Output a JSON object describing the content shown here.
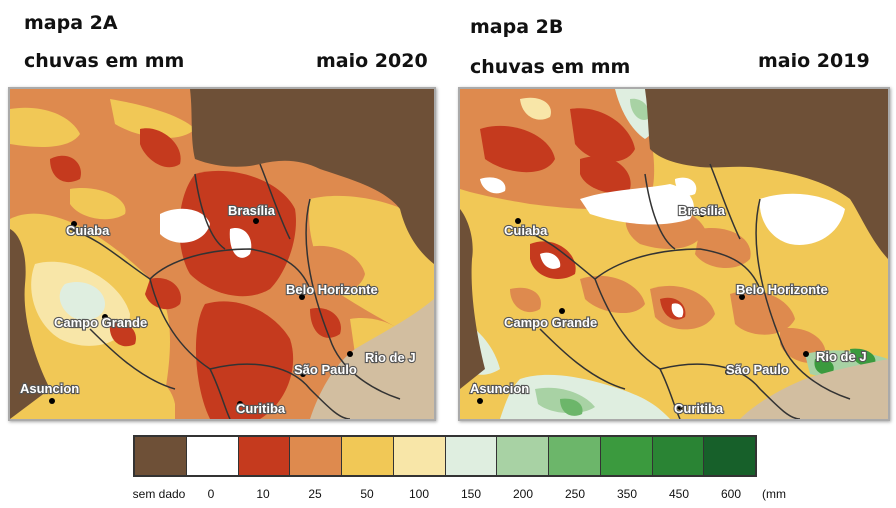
{
  "left_map": {
    "title": "mapa 2A",
    "subtitle": "chuvas em mm",
    "date": "maio 2020",
    "cities": {
      "brasilia": "Brasília",
      "cuiaba": "Cuiaba",
      "campo_grande": "Campo Grande",
      "belo_horizonte": "Belo Horizonte",
      "asuncion": "Asuncion",
      "sao_paulo": "São Paulo",
      "rio": "Rio de J",
      "curitiba": "Curitiba"
    }
  },
  "right_map": {
    "title": "mapa 2B",
    "subtitle": "chuvas em mm",
    "date": "maio 2019",
    "cities": {
      "brasilia": "Brasília",
      "cuiaba": "Cuiaba",
      "campo_grande": "Campo Grande",
      "belo_horizonte": "Belo Horizonte",
      "asuncion": "Asuncion",
      "sao_paulo": "São Paulo",
      "rio": "Rio de J",
      "curitiba": "Curitiba"
    }
  },
  "legend": {
    "unit": "(mm",
    "labels": [
      "sem dado",
      "0",
      "10",
      "25",
      "50",
      "100",
      "150",
      "200",
      "250",
      "350",
      "450",
      "600"
    ],
    "colors": [
      "#6e5037",
      "#ffffff",
      "#c53a1e",
      "#de8a4e",
      "#f1c856",
      "#f8e6a8",
      "#dfeee0",
      "#a8d2a4",
      "#6cb66a",
      "#3b9a3e",
      "#2a8434",
      "#17602a"
    ]
  }
}
